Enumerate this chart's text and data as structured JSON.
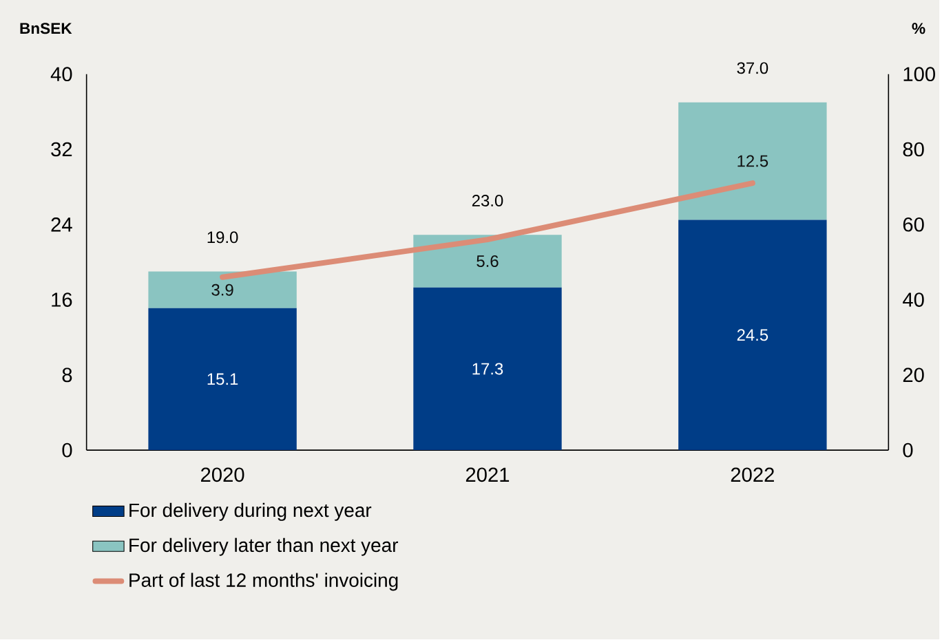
{
  "chart_data": {
    "type": "bar",
    "stacked": true,
    "ylabel": "BnSEK",
    "y2label": "%",
    "categories": [
      "2020",
      "2021",
      "2022"
    ],
    "series": [
      {
        "name": "For delivery during next year",
        "color": "#003d87",
        "values": [
          15.1,
          17.3,
          24.5
        ],
        "value_labels": [
          "15.1",
          "17.3",
          "24.5"
        ]
      },
      {
        "name": "For delivery later than next year",
        "color": "#8ac4c1",
        "values": [
          3.9,
          5.6,
          12.5
        ],
        "value_labels": [
          "3.9",
          "5.6",
          "12.5"
        ]
      },
      {
        "name": "Part of last 12 months' invoicing",
        "type": "line",
        "axis": "y2",
        "color": "#dc8c76",
        "values": [
          46,
          56,
          71
        ]
      }
    ],
    "totals": [
      "19.0",
      "23.0",
      "37.0"
    ],
    "ylim": [
      0,
      40
    ],
    "yticks": [
      0,
      8,
      16,
      24,
      32,
      40
    ],
    "y2lim": [
      0,
      100
    ],
    "y2ticks": [
      0,
      20,
      40,
      60,
      80,
      100
    ],
    "grid": false,
    "legend": "bottom"
  }
}
